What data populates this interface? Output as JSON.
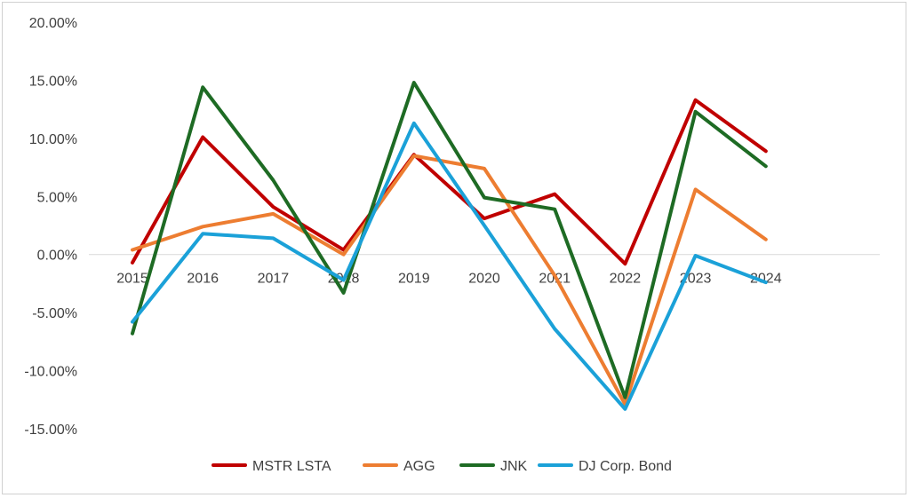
{
  "chart_data": {
    "type": "line",
    "title": "",
    "xlabel": "",
    "ylabel": "",
    "categories": [
      "2015",
      "2016",
      "2017",
      "2018",
      "2019",
      "2020",
      "2021",
      "2022",
      "2023",
      "2024"
    ],
    "y_ticks": [
      "20.00%",
      "15.00%",
      "10.00%",
      "5.00%",
      "0.00%",
      "-5.00%",
      "-10.00%",
      "-15.00%"
    ],
    "ylim": [
      -15,
      20
    ],
    "y_unit": "percent",
    "grid": "horizontal zero line",
    "legend_position": "bottom",
    "series": [
      {
        "name": "MSTR LSTA",
        "color": "#c00000",
        "values": [
          -0.7,
          10.1,
          4.1,
          0.4,
          8.6,
          3.1,
          5.2,
          -0.8,
          13.3,
          8.9
        ]
      },
      {
        "name": "AGG",
        "color": "#ed7d31",
        "values": [
          0.4,
          2.4,
          3.5,
          0.0,
          8.5,
          7.4,
          -1.8,
          -12.9,
          5.6,
          1.3
        ]
      },
      {
        "name": "JNK",
        "color": "#1e6b24",
        "values": [
          -6.8,
          14.4,
          6.4,
          -3.3,
          14.8,
          4.9,
          3.9,
          -12.3,
          12.3,
          7.6
        ]
      },
      {
        "name": "DJ Corp. Bond",
        "color": "#1ba1d8",
        "values": [
          -5.8,
          1.8,
          1.4,
          -2.2,
          11.3,
          2.5,
          -6.4,
          -13.3,
          -0.1,
          -2.4
        ]
      }
    ]
  }
}
